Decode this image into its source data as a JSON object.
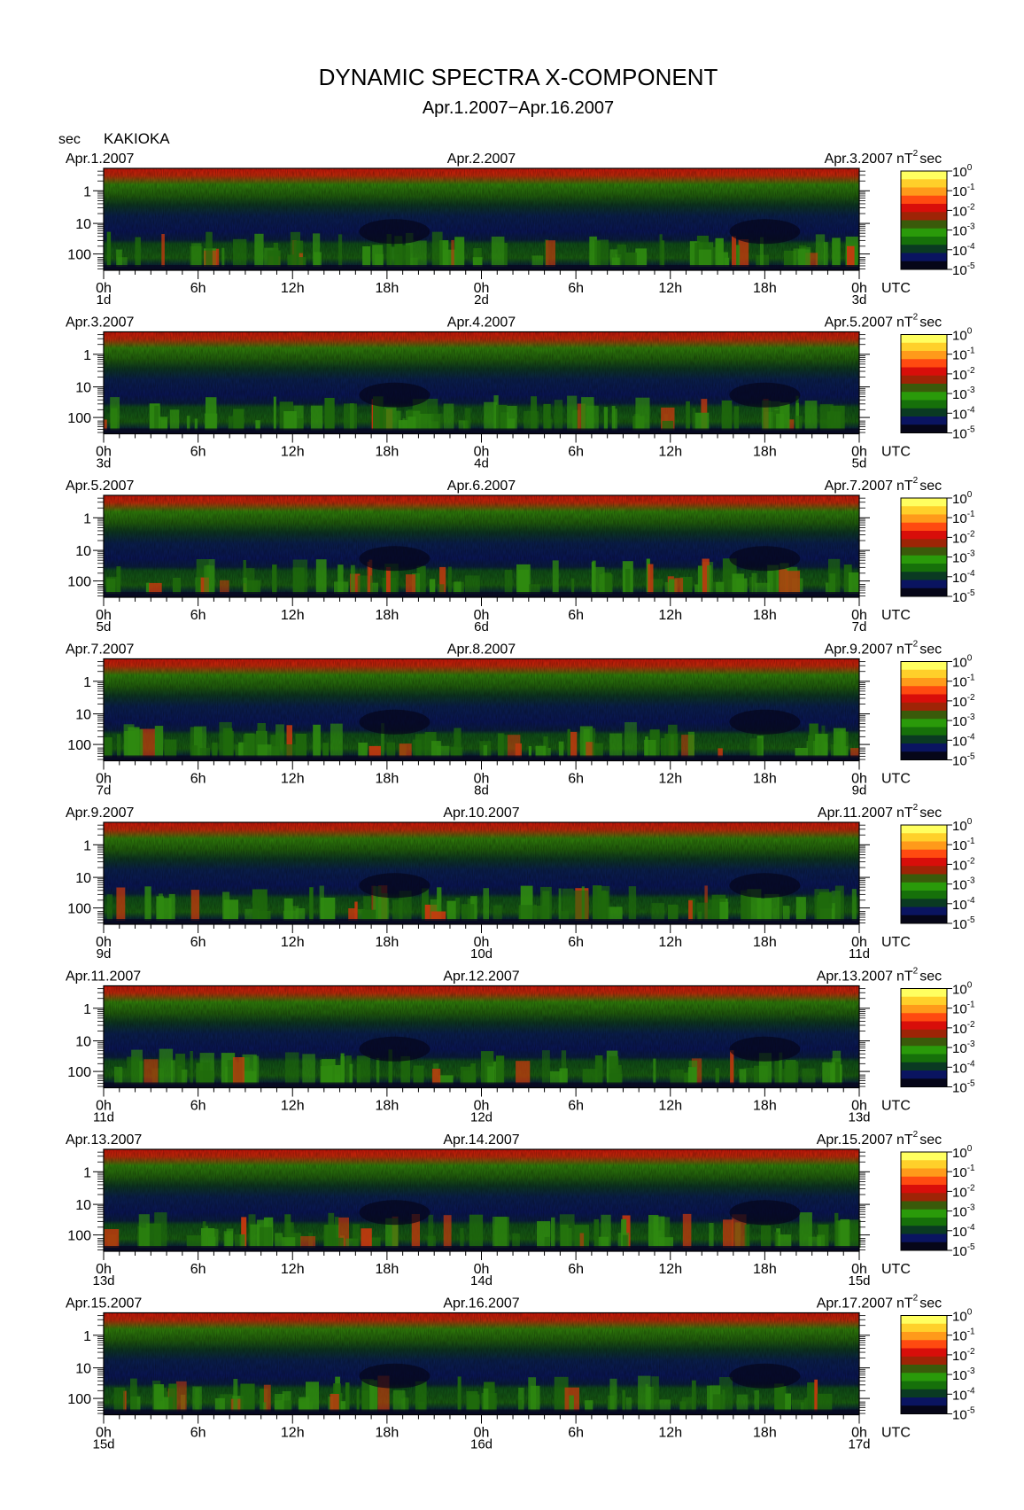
{
  "title": "DYNAMIC SPECTRA X-COMPONENT",
  "subtitle": "Apr.1.2007−Apr.16.2007",
  "ylabel": "sec",
  "station": "KAKIOKA",
  "unit_prefix": "nT",
  "unit_sup": "2",
  "unit_suffix": "sec",
  "utc_label": "UTC",
  "chart_data": {
    "type": "heatmap",
    "x_ticks": [
      "0h",
      "6h",
      "12h",
      "18h",
      "0h",
      "6h",
      "12h",
      "18h",
      "0h"
    ],
    "y_ticks": [
      "1",
      "10",
      "100"
    ],
    "colorbar": {
      "base": "10",
      "exponents": [
        "0",
        "-1",
        "-2",
        "-3",
        "-4",
        "-5"
      ],
      "colors": [
        "#ffff60",
        "#ffd02a",
        "#ff9a1a",
        "#ff4a10",
        "#d80e0a",
        "#9e2406",
        "#3a5a0a",
        "#2a9a0a",
        "#16700a",
        "#0a3a22",
        "#0a1460",
        "#060618"
      ]
    },
    "panels": [
      {
        "date_left": "Apr.1.2007",
        "date_mid": "Apr.2.2007",
        "date_right": "Apr.3.2007",
        "day_left": "1d",
        "day_mid": "2d",
        "day_right": "3d"
      },
      {
        "date_left": "Apr.3.2007",
        "date_mid": "Apr.4.2007",
        "date_right": "Apr.5.2007",
        "day_left": "3d",
        "day_mid": "4d",
        "day_right": "5d"
      },
      {
        "date_left": "Apr.5.2007",
        "date_mid": "Apr.6.2007",
        "date_right": "Apr.7.2007",
        "day_left": "5d",
        "day_mid": "6d",
        "day_right": "7d"
      },
      {
        "date_left": "Apr.7.2007",
        "date_mid": "Apr.8.2007",
        "date_right": "Apr.9.2007",
        "day_left": "7d",
        "day_mid": "8d",
        "day_right": "9d"
      },
      {
        "date_left": "Apr.9.2007",
        "date_mid": "Apr.10.2007",
        "date_right": "Apr.11.2007",
        "day_left": "9d",
        "day_mid": "10d",
        "day_right": "11d"
      },
      {
        "date_left": "Apr.11.2007",
        "date_mid": "Apr.12.2007",
        "date_right": "Apr.13.2007",
        "day_left": "11d",
        "day_mid": "12d",
        "day_right": "13d"
      },
      {
        "date_left": "Apr.13.2007",
        "date_mid": "Apr.14.2007",
        "date_right": "Apr.15.2007",
        "day_left": "13d",
        "day_mid": "14d",
        "day_right": "15d"
      },
      {
        "date_left": "Apr.15.2007",
        "date_mid": "Apr.16.2007",
        "date_right": "Apr.17.2007",
        "day_left": "15d",
        "day_mid": "16d",
        "day_right": "17d"
      }
    ]
  }
}
